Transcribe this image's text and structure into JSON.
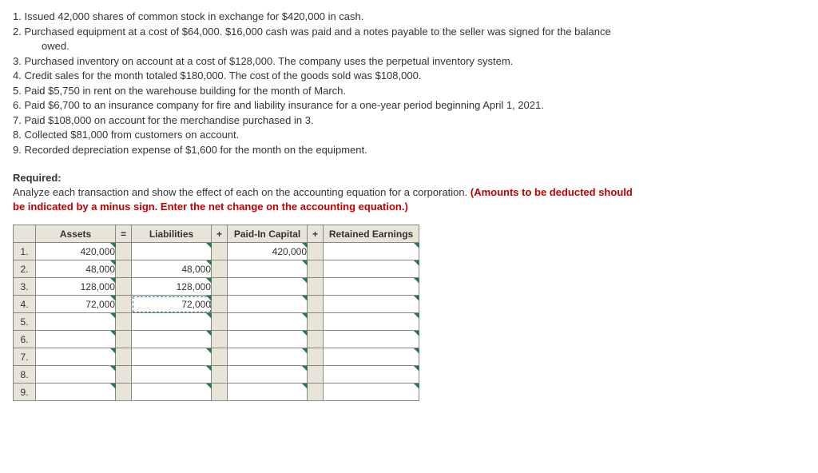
{
  "transactions": [
    "1. Issued 42,000 shares of common stock in exchange for $420,000 in cash.",
    "2. Purchased equipment at a cost of $64,000. $16,000 cash was paid and a notes payable to the seller was signed for the balance",
    "owed.",
    "3. Purchased inventory on account at a cost of $128,000. The company uses the perpetual inventory system.",
    "4. Credit sales for the month totaled $180,000. The cost of the goods sold was $108,000.",
    "5. Paid $5,750 in rent on the warehouse building for the month of March.",
    "6. Paid $6,700 to an insurance company for fire and liability insurance for a one-year period beginning April 1, 2021.",
    "7. Paid $108,000 on account for the merchandise purchased in 3.",
    "8. Collected $81,000 from customers on account.",
    "9. Recorded depreciation expense of $1,600 for the month on the equipment."
  ],
  "required": {
    "heading": "Required:",
    "line1": "Analyze each transaction and show the effect of each on the accounting equation for a corporation. ",
    "red1": "(Amounts to be deducted should",
    "red2": "be indicated by a minus sign. Enter the net change on the accounting equation.)"
  },
  "table": {
    "headers": {
      "assets": "Assets",
      "eq": "=",
      "liab": "Liabilities",
      "plus1": "+",
      "paid": "Paid-In Capital",
      "plus2": "+",
      "ret": "Retained Earnings"
    },
    "rows": [
      {
        "n": "1.",
        "a": "420,000",
        "l": "",
        "p": "420,000",
        "r": ""
      },
      {
        "n": "2.",
        "a": "48,000",
        "l": "48,000",
        "p": "",
        "r": ""
      },
      {
        "n": "3.",
        "a": "128,000",
        "l": "128,000",
        "p": "",
        "r": ""
      },
      {
        "n": "4.",
        "a": "72,000",
        "l": "72,000",
        "p": "",
        "r": "",
        "dashed_l": true
      },
      {
        "n": "5.",
        "a": "",
        "l": "",
        "p": "",
        "r": ""
      },
      {
        "n": "6.",
        "a": "",
        "l": "",
        "p": "",
        "r": ""
      },
      {
        "n": "7.",
        "a": "",
        "l": "",
        "p": "",
        "r": ""
      },
      {
        "n": "8.",
        "a": "",
        "l": "",
        "p": "",
        "r": ""
      },
      {
        "n": "9.",
        "a": "",
        "l": "",
        "p": "",
        "r": ""
      }
    ]
  }
}
